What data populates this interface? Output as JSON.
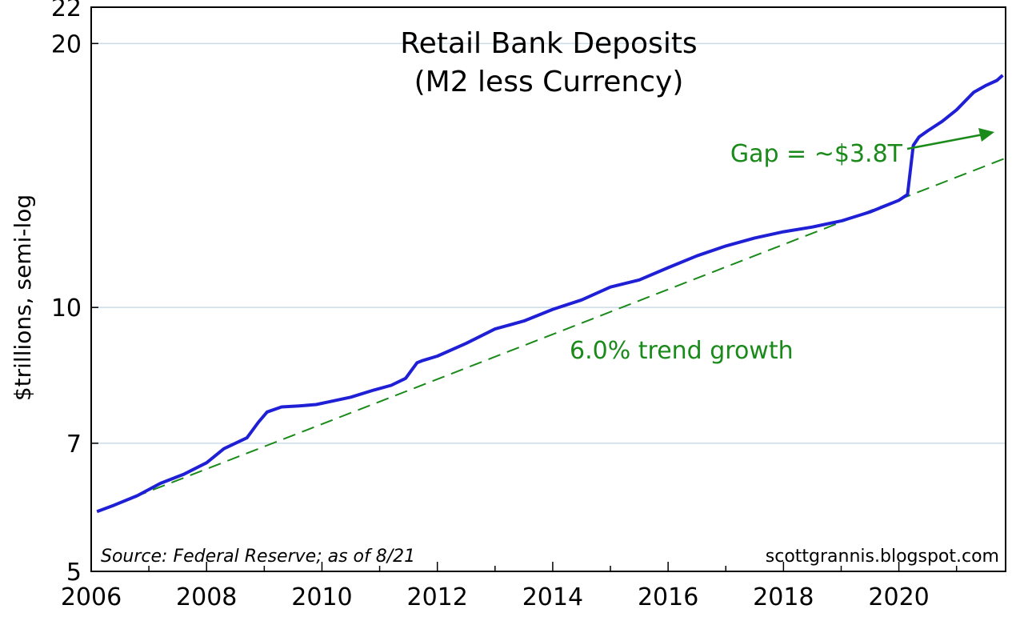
{
  "chart_data": {
    "type": "line",
    "title": [
      "Retail Bank Deposits",
      "(M2 less Currency)"
    ],
    "ylabel": "$trillions, semi-log",
    "y_scale": "log",
    "ylim": [
      5,
      22
    ],
    "xlim": [
      2006.0,
      2021.85
    ],
    "y_ticks": [
      5,
      7,
      10,
      20,
      22
    ],
    "x_ticks": [
      2006,
      2008,
      2010,
      2012,
      2014,
      2016,
      2018,
      2020
    ],
    "grid": "horizontal",
    "colors": {
      "series": "#1f1fd6",
      "trend": "#1a8a1a",
      "grid": "#c9dcea"
    },
    "series": [
      {
        "x": [
          2006.1,
          2006.4,
          2006.8,
          2007.2,
          2007.6,
          2008.0,
          2008.3,
          2008.7,
          2008.9,
          2009.05,
          2009.3,
          2009.6,
          2009.9,
          2010.1,
          2010.5,
          2010.9,
          2011.2,
          2011.45,
          2011.65,
          2011.75,
          2012.0,
          2012.5,
          2013.0,
          2013.5,
          2014.0,
          2014.5,
          2015.0,
          2015.5,
          2016.0,
          2016.5,
          2017.0,
          2017.5,
          2018.0,
          2018.5,
          2019.0,
          2019.5,
          2020.0,
          2020.15,
          2020.25,
          2020.35,
          2020.5,
          2020.75,
          2021.0,
          2021.3,
          2021.5,
          2021.7,
          2021.8
        ],
        "values": [
          5.85,
          5.95,
          6.1,
          6.3,
          6.45,
          6.65,
          6.9,
          7.1,
          7.4,
          7.6,
          7.7,
          7.72,
          7.75,
          7.8,
          7.9,
          8.05,
          8.15,
          8.3,
          8.65,
          8.7,
          8.8,
          9.1,
          9.45,
          9.65,
          9.95,
          10.2,
          10.55,
          10.75,
          11.1,
          11.45,
          11.75,
          12.0,
          12.2,
          12.35,
          12.55,
          12.85,
          13.25,
          13.45,
          15.3,
          15.65,
          15.9,
          16.3,
          16.8,
          17.6,
          17.9,
          18.15,
          18.4
        ]
      },
      {
        "x": [
          2006.1,
          2021.85
        ],
        "values": [
          5.85,
          14.8
        ]
      }
    ],
    "annotations": [
      {
        "text": "Gap = ~$3.8T"
      },
      {
        "text": "6.0% trend growth"
      }
    ],
    "source": "Source: Federal Reserve; as of 8/21",
    "credit": "scottgrannis.blogspot.com"
  }
}
